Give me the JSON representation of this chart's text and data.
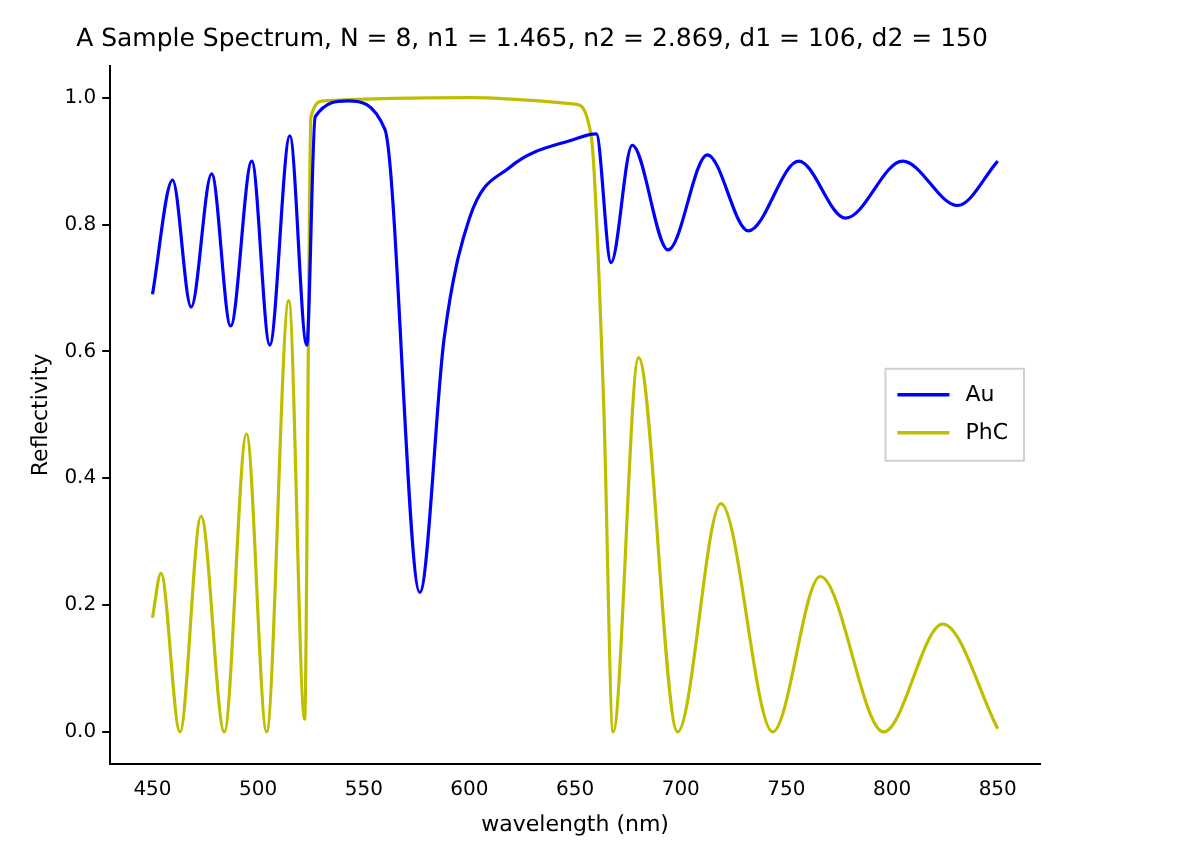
{
  "chart_data": {
    "type": "line",
    "title": "A Sample Spectrum, N = 8, n1 = 1.465, n2 = 2.869, d1 = 106, d2 = 150",
    "xlabel": "wavelength (nm)",
    "ylabel": "Reflectivity",
    "xlim": [
      430,
      870
    ],
    "xticks": [
      450,
      500,
      550,
      600,
      650,
      700,
      750,
      800,
      850
    ],
    "ylim": [
      -0.05,
      1.05
    ],
    "yticks": [
      {
        "value": 0,
        "label": "0.0"
      },
      {
        "value": 0.2,
        "label": "0.2"
      },
      {
        "value": 0.4,
        "label": "0.4"
      },
      {
        "value": 0.6,
        "label": "0.6"
      },
      {
        "value": 0.8,
        "label": "0.8"
      },
      {
        "value": 1,
        "label": "1.0"
      }
    ],
    "grid": false,
    "legend": "right",
    "marker": "none",
    "line_style": "solid",
    "series": [
      {
        "name": "Au",
        "color": "#0000ff",
        "x": [
          450,
          459.5,
          468.3,
          478,
          487,
          497,
          505.5,
          515,
          523,
          527,
          542.5,
          560,
          576.5,
          588,
          600,
          619,
          650,
          660,
          667,
          677,
          694,
          712.6,
          732,
          755.8,
          778,
          805,
          831,
          850
        ],
        "values": [
          0.69,
          0.87,
          0.67,
          0.88,
          0.64,
          0.9,
          0.61,
          0.94,
          0.61,
          0.97,
          0.995,
          0.95,
          0.22,
          0.62,
          0.81,
          0.89,
          0.935,
          0.943,
          0.74,
          0.925,
          0.76,
          0.91,
          0.79,
          0.9,
          0.81,
          0.9,
          0.83,
          0.9
        ]
      },
      {
        "name": "PhC",
        "color": "#bfbf00",
        "x": [
          450,
          454,
          463,
          473,
          484,
          494.5,
          504,
          514.5,
          522,
          525,
          531,
          600,
          650,
          657.6,
          663.5,
          668,
          680,
          698.5,
          719,
          743.5,
          766,
          796,
          824,
          850
        ],
        "values": [
          0.18,
          0.25,
          0,
          0.34,
          0,
          0.47,
          0,
          0.68,
          0.02,
          0.97,
          0.995,
          1,
          0.99,
          0.94,
          0.52,
          0,
          0.59,
          0,
          0.36,
          0,
          0.245,
          0,
          0.17,
          0.005
        ]
      }
    ]
  }
}
